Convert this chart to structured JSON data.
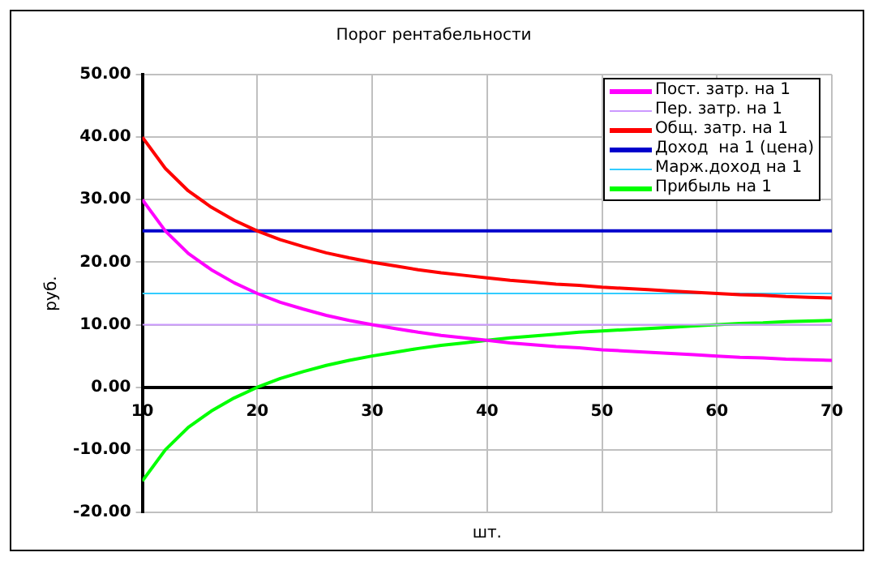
{
  "chart_data": {
    "type": "line",
    "title": "Порог рентабельности",
    "xlabel": "шт.",
    "ylabel": "руб.",
    "xlim": [
      10,
      70
    ],
    "xticks": [
      10,
      20,
      30,
      40,
      50,
      60,
      70
    ],
    "ylim": [
      -20,
      50
    ],
    "yticks": [
      {
        "value": -20,
        "label": "-20.00"
      },
      {
        "value": -10,
        "label": "-10.00"
      },
      {
        "value": 0,
        "label": "0.00"
      },
      {
        "value": 10,
        "label": "10.00"
      },
      {
        "value": 20,
        "label": "20.00"
      },
      {
        "value": 30,
        "label": "30.00"
      },
      {
        "value": 40,
        "label": "40.00"
      },
      {
        "value": 50,
        "label": "50.00"
      }
    ],
    "grid": true,
    "legend": "top right",
    "marker": "none",
    "line_style": "solid",
    "x": [
      10,
      12,
      14,
      16,
      18,
      20,
      22,
      24,
      26,
      28,
      30,
      32,
      34,
      36,
      38,
      40,
      42,
      44,
      46,
      48,
      50,
      52,
      54,
      56,
      58,
      60,
      62,
      64,
      66,
      68,
      70
    ],
    "series": [
      {
        "name": "Пост. затр. на 1",
        "color": "#ff00ff",
        "values": [
          30,
          25,
          21.4,
          18.8,
          16.7,
          15,
          13.6,
          12.5,
          11.5,
          10.7,
          10,
          9.4,
          8.8,
          8.3,
          7.9,
          7.5,
          7.1,
          6.8,
          6.5,
          6.3,
          6,
          5.8,
          5.6,
          5.4,
          5.2,
          5,
          4.8,
          4.7,
          4.5,
          4.4,
          4.3
        ]
      },
      {
        "name": "Пер. затр. на 1",
        "color": "#cc99ff",
        "values": [
          10,
          10,
          10,
          10,
          10,
          10,
          10,
          10,
          10,
          10,
          10,
          10,
          10,
          10,
          10,
          10,
          10,
          10,
          10,
          10,
          10,
          10,
          10,
          10,
          10,
          10,
          10,
          10,
          10,
          10,
          10
        ]
      },
      {
        "name": "Общ. затр. на 1",
        "color": "#ff0000",
        "values": [
          40,
          35,
          31.4,
          28.8,
          26.7,
          25,
          23.6,
          22.5,
          21.5,
          20.7,
          20,
          19.4,
          18.8,
          18.3,
          17.9,
          17.5,
          17.1,
          16.8,
          16.5,
          16.3,
          16,
          15.8,
          15.6,
          15.4,
          15.2,
          15,
          14.8,
          14.7,
          14.5,
          14.4,
          14.3
        ]
      },
      {
        "name": "Доход  на 1 (цена)",
        "color": "#0000cc",
        "values": [
          25,
          25,
          25,
          25,
          25,
          25,
          25,
          25,
          25,
          25,
          25,
          25,
          25,
          25,
          25,
          25,
          25,
          25,
          25,
          25,
          25,
          25,
          25,
          25,
          25,
          25,
          25,
          25,
          25,
          25,
          25
        ]
      },
      {
        "name": "Марж.доход на 1",
        "color": "#33ccff",
        "values": [
          15,
          15,
          15,
          15,
          15,
          15,
          15,
          15,
          15,
          15,
          15,
          15,
          15,
          15,
          15,
          15,
          15,
          15,
          15,
          15,
          15,
          15,
          15,
          15,
          15,
          15,
          15,
          15,
          15,
          15,
          15
        ]
      },
      {
        "name": "Прибыль на 1",
        "color": "#00ff00",
        "values": [
          -15,
          -10,
          -6.4,
          -3.8,
          -1.7,
          0,
          1.4,
          2.5,
          3.5,
          4.3,
          5,
          5.6,
          6.2,
          6.7,
          7.1,
          7.5,
          7.9,
          8.2,
          8.5,
          8.8,
          9,
          9.2,
          9.4,
          9.6,
          9.8,
          10,
          10.2,
          10.3,
          10.5,
          10.6,
          10.7
        ]
      }
    ]
  }
}
